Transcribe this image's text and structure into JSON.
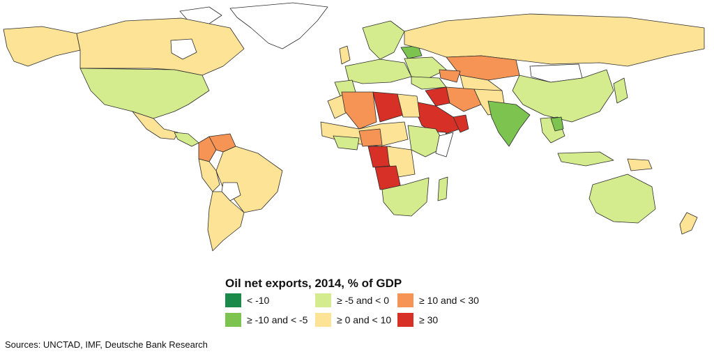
{
  "legend": {
    "title": "Oil net exports, 2014, % of GDP",
    "items": [
      {
        "label": "< -10",
        "color": "#1a8a4a"
      },
      {
        "label": "≥ -10 and < -5",
        "color": "#7cc350"
      },
      {
        "label": "≥ -5 and < 0",
        "color": "#d4ec8e"
      },
      {
        "label": "≥ 0 and < 10",
        "color": "#fde395"
      },
      {
        "label": "≥ 10 and < 30",
        "color": "#f59454"
      },
      {
        "label": "≥ 30",
        "color": "#d73027"
      }
    ]
  },
  "no_data_color": "#ffffff",
  "source": "Sources: UNCTAD, IMF, Deutsche Bank Research"
}
